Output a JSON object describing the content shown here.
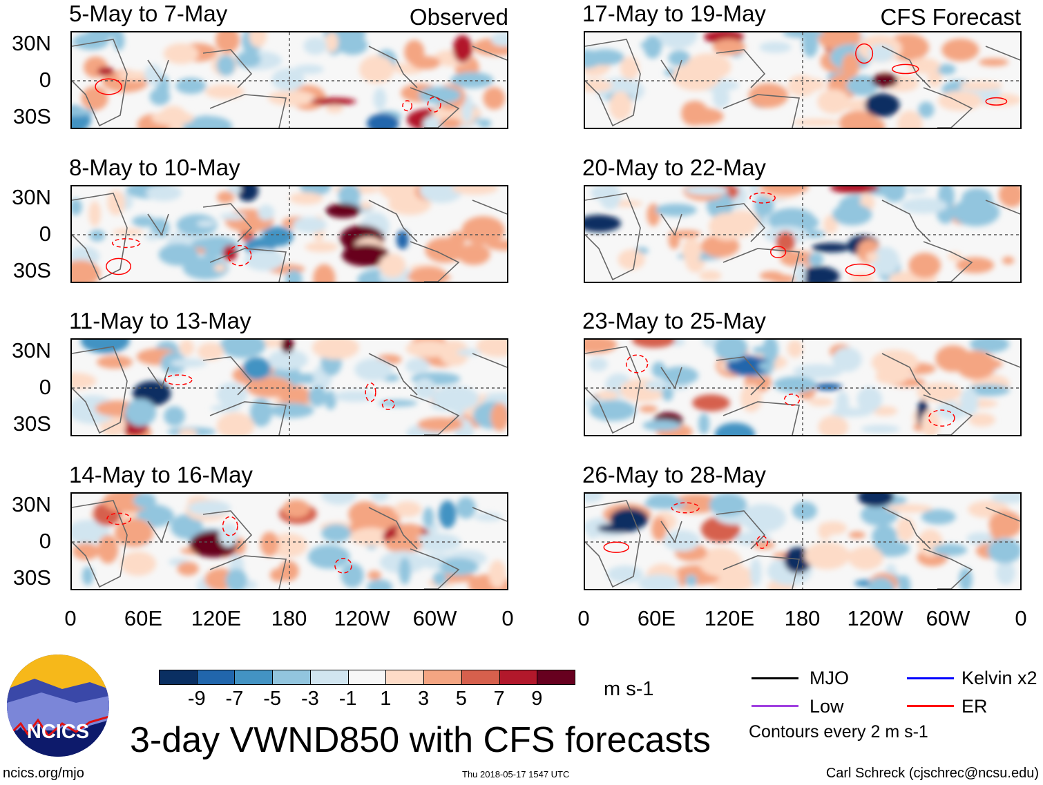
{
  "title": "3-day VWND850 with CFS forecasts",
  "left_column": {
    "header": "Observed",
    "panels": [
      "5-May to 7-May",
      "8-May to 10-May",
      "11-May to 13-May",
      "14-May to 16-May"
    ]
  },
  "right_column": {
    "header": "CFS Forecast",
    "panels": [
      "17-May to 19-May",
      "20-May to 22-May",
      "23-May to 25-May",
      "26-May to 28-May"
    ]
  },
  "lat_labels": [
    "30N",
    "0",
    "30S"
  ],
  "lon_labels": [
    "0",
    "60E",
    "120E",
    "180",
    "120W",
    "60W",
    "0"
  ],
  "colorbar": {
    "labels": [
      "-9",
      "-7",
      "-5",
      "-3",
      "-1",
      "1",
      "3",
      "5",
      "7",
      "9"
    ],
    "units": "m s-1",
    "colors": [
      "#0a2f62",
      "#2166ac",
      "#4393c3",
      "#92c5de",
      "#d1e5f0",
      "#f7f7f7",
      "#fddbc7",
      "#f4a582",
      "#d6604d",
      "#b2182b",
      "#67001f"
    ]
  },
  "legend": {
    "items": [
      {
        "label": "MJO",
        "color": "#000000"
      },
      {
        "label": "Kelvin x2",
        "color": "#0000ff"
      },
      {
        "label": "Low",
        "color": "#a040e0"
      },
      {
        "label": "ER",
        "color": "#ff0000"
      }
    ],
    "note": "Contours every 2 m s-1"
  },
  "logo": {
    "text": "NCICS"
  },
  "footer": {
    "url": "ncics.org/mjo",
    "timestamp": "Thu 2018-05-17 1547 UTC",
    "credit": "Carl Schreck (cjschrec@ncsu.edu)"
  }
}
